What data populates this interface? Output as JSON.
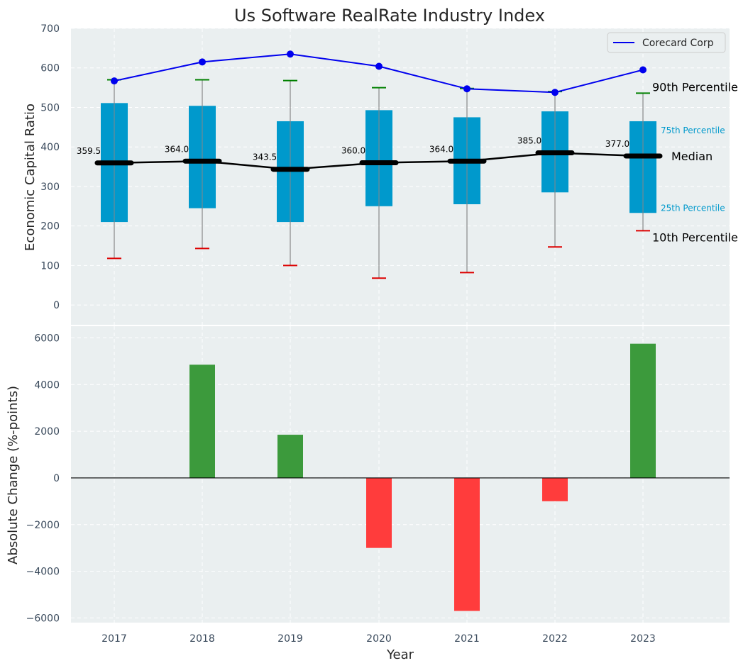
{
  "chart_data": [
    {
      "type": "box",
      "title": "Us Software RealRate Industry Index",
      "ylabel": "Economic Capital Ratio",
      "ylim": [
        -50,
        700
      ],
      "yticks": [
        0,
        100,
        200,
        300,
        400,
        500,
        600,
        700
      ],
      "categories": [
        "2017",
        "2018",
        "2019",
        "2020",
        "2021",
        "2022",
        "2023"
      ],
      "p10": [
        118,
        143,
        100,
        68,
        82,
        147,
        188
      ],
      "p25": [
        210,
        245,
        210,
        250,
        255,
        285,
        233
      ],
      "median": [
        359.5,
        364.0,
        343.5,
        360.0,
        364.0,
        385.0,
        377.0
      ],
      "median_labels": [
        "359.5",
        "364.0",
        "343.5",
        "360.0",
        "364.0",
        "385.0",
        "377.0"
      ],
      "p75": [
        511,
        504,
        465,
        493,
        475,
        490,
        465
      ],
      "p90": [
        570,
        570,
        568,
        550,
        548,
        540,
        536
      ],
      "company_series": {
        "name": "Corecard Corp",
        "values": [
          567,
          615,
          635,
          604,
          547,
          538,
          595
        ]
      },
      "annotations": {
        "p90": "90th Percentile",
        "p75": "75th Percentile",
        "median": "Median",
        "p25": "25th Percentile",
        "p10": "10th Percentile"
      },
      "legend": {
        "position": "top-right",
        "entries": [
          "Corecard Corp"
        ]
      },
      "grid": true
    },
    {
      "type": "bar",
      "xlabel": "Year",
      "ylabel": "Absolute Change (%-points)",
      "ylim": [
        -6200,
        6500
      ],
      "yticks": [
        -6000,
        -4000,
        -2000,
        0,
        2000,
        4000,
        6000
      ],
      "ytick_labels": [
        "−6000",
        "−4000",
        "−2000",
        "0",
        "2000",
        "4000",
        "6000"
      ],
      "categories": [
        "2017",
        "2018",
        "2019",
        "2020",
        "2021",
        "2022",
        "2023"
      ],
      "values": [
        0,
        4850,
        1850,
        -3000,
        -5700,
        -1000,
        5750
      ],
      "positive_color": "#3c9a3c",
      "negative_color": "#ff3c3c",
      "grid": true
    }
  ],
  "colors": {
    "box": "#0099cc",
    "company_line": "#0000ee",
    "median_line": "#000000",
    "p90_cap": "#008000",
    "p10_cap": "#dd0000",
    "whisker": "#888888",
    "panel_bg": "#eaeff0"
  }
}
